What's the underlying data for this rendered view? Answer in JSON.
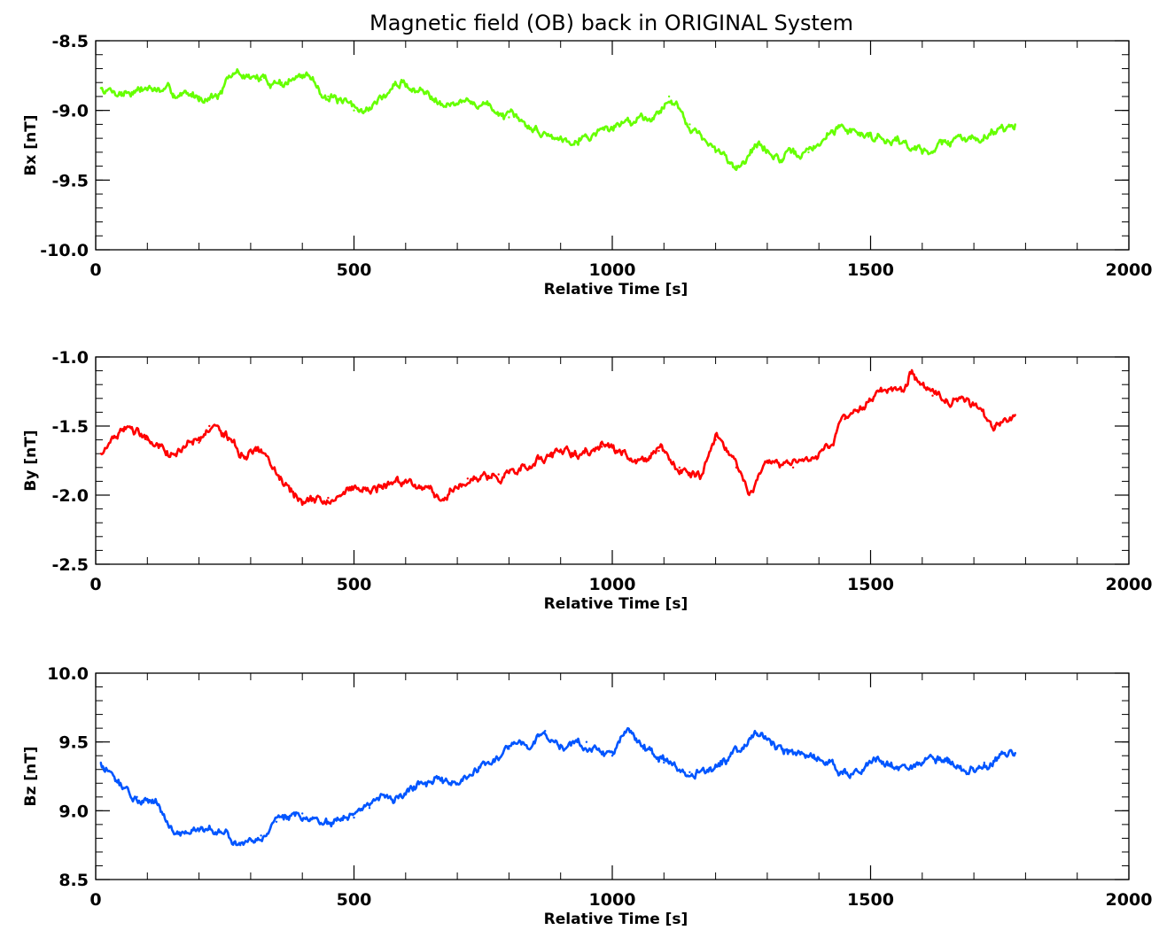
{
  "chart_data": [
    {
      "type": "line",
      "title": "Magnetic field (OB) back in ORIGINAL System",
      "xlabel": "Relative Time [s]",
      "ylabel": "Bx [nT]",
      "xlim": [
        0,
        2000
      ],
      "ylim": [
        -10.0,
        -8.5
      ],
      "xticks": [
        "0",
        "500",
        "1000",
        "1500",
        "2000"
      ],
      "yticks": [
        "-8.5",
        "-9.0",
        "-9.5",
        "-10.0"
      ],
      "grid": false,
      "color": "#66ff00",
      "series": [
        {
          "x": [
            10,
            50,
            100,
            150,
            200,
            240,
            270,
            320,
            360,
            410,
            450,
            500,
            530,
            590,
            640,
            700,
            750,
            800,
            850,
            900,
            950,
            1000,
            1050,
            1090,
            1110,
            1150,
            1200,
            1240,
            1280,
            1330,
            1380,
            1440,
            1500,
            1550,
            1600,
            1650,
            1700,
            1750,
            1780
          ],
          "values": [
            -8.84,
            -8.87,
            -8.84,
            -8.88,
            -8.9,
            -8.88,
            -8.73,
            -8.78,
            -8.8,
            -8.75,
            -8.9,
            -9.0,
            -8.98,
            -8.8,
            -8.88,
            -8.95,
            -8.95,
            -9.05,
            -9.14,
            -9.2,
            -9.18,
            -9.12,
            -9.05,
            -9.02,
            -8.9,
            -9.1,
            -9.3,
            -9.4,
            -9.25,
            -9.35,
            -9.3,
            -9.12,
            -9.18,
            -9.2,
            -9.3,
            -9.22,
            -9.2,
            -9.12,
            -9.1
          ]
        }
      ]
    },
    {
      "type": "line",
      "title": "",
      "xlabel": "Relative Time [s]",
      "ylabel": "By [nT]",
      "xlim": [
        0,
        2000
      ],
      "ylim": [
        -2.5,
        -1.0
      ],
      "xticks": [
        "0",
        "500",
        "1000",
        "1500",
        "2000"
      ],
      "yticks": [
        "-1.0",
        "-1.5",
        "-2.0",
        "-2.5"
      ],
      "grid": false,
      "color": "#ff0000",
      "series": [
        {
          "x": [
            10,
            40,
            70,
            100,
            150,
            200,
            220,
            250,
            280,
            310,
            350,
            400,
            450,
            500,
            550,
            600,
            650,
            680,
            720,
            780,
            830,
            880,
            930,
            980,
            1020,
            1060,
            1090,
            1130,
            1170,
            1200,
            1240,
            1265,
            1300,
            1350,
            1380,
            1420,
            1450,
            1480,
            1520,
            1560,
            1580,
            1620,
            1660,
            1700,
            1740,
            1780
          ],
          "values": [
            -1.7,
            -1.58,
            -1.52,
            -1.6,
            -1.7,
            -1.62,
            -1.5,
            -1.55,
            -1.72,
            -1.68,
            -1.85,
            -2.05,
            -2.02,
            -1.95,
            -1.93,
            -1.9,
            -1.95,
            -2.02,
            -1.88,
            -1.85,
            -1.78,
            -1.72,
            -1.7,
            -1.65,
            -1.68,
            -1.75,
            -1.68,
            -1.8,
            -1.87,
            -1.6,
            -1.8,
            -2.0,
            -1.75,
            -1.8,
            -1.75,
            -1.65,
            -1.45,
            -1.38,
            -1.25,
            -1.25,
            -1.1,
            -1.28,
            -1.3,
            -1.35,
            -1.5,
            -1.42
          ]
        }
      ]
    },
    {
      "type": "line",
      "title": "",
      "xlabel": "Relative Time [s]",
      "ylabel": "Bz [nT]",
      "xlim": [
        0,
        2000
      ],
      "ylim": [
        8.5,
        10.0
      ],
      "xticks": [
        "0",
        "500",
        "1000",
        "1500",
        "2000"
      ],
      "yticks": [
        "10.0",
        "9.5",
        "9.0",
        "8.5"
      ],
      "grid": false,
      "color": "#0055ff",
      "series": [
        {
          "x": [
            10,
            40,
            80,
            120,
            150,
            200,
            250,
            280,
            320,
            350,
            400,
            450,
            500,
            530,
            560,
            600,
            650,
            700,
            750,
            800,
            850,
            870,
            900,
            950,
            1000,
            1030,
            1060,
            1100,
            1150,
            1200,
            1250,
            1280,
            1330,
            1380,
            1420,
            1460,
            1500,
            1550,
            1600,
            1650,
            1680,
            1720,
            1760,
            1780
          ],
          "values": [
            9.35,
            9.22,
            9.1,
            9.05,
            8.85,
            8.85,
            8.85,
            8.75,
            8.82,
            8.92,
            8.98,
            8.92,
            8.95,
            9.02,
            9.1,
            9.12,
            9.2,
            9.2,
            9.35,
            9.45,
            9.5,
            9.58,
            9.48,
            9.5,
            9.4,
            9.6,
            9.45,
            9.35,
            9.28,
            9.32,
            9.45,
            9.55,
            9.45,
            9.4,
            9.35,
            9.25,
            9.35,
            9.32,
            9.35,
            9.38,
            9.3,
            9.35,
            9.42,
            9.42
          ]
        }
      ]
    }
  ]
}
